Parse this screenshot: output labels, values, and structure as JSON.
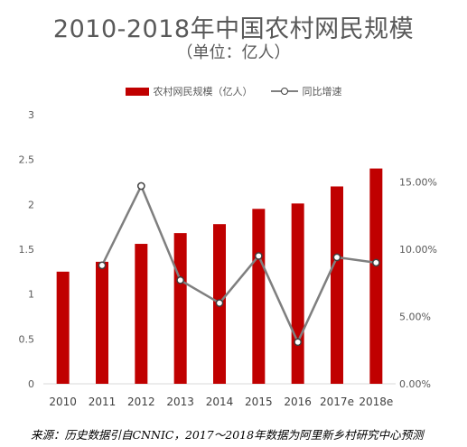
{
  "chart_data": {
    "type": "bar",
    "title": "2010-2018年中国农村网民规模",
    "subtitle": "（单位：亿人）",
    "categories": [
      "2010",
      "2011",
      "2012",
      "2013",
      "2014",
      "2015",
      "2016",
      "2017e",
      "2018e"
    ],
    "series": [
      {
        "name": "农村网民规模（亿人）",
        "type": "bar",
        "axis": "left",
        "color": "#C00000",
        "values": [
          1.25,
          1.36,
          1.56,
          1.68,
          1.78,
          1.95,
          2.01,
          2.2,
          2.4
        ]
      },
      {
        "name": "同比增速",
        "type": "line",
        "axis": "right",
        "color": "#7f7f7f",
        "values": [
          null,
          8.8,
          14.7,
          7.7,
          6.0,
          9.5,
          3.1,
          9.4,
          9.0
        ]
      }
    ],
    "y_left": {
      "min": 0,
      "max": 3,
      "ticks": [
        "0",
        "0.5",
        "1",
        "1.5",
        "2",
        "2.5",
        "3"
      ]
    },
    "y_right": {
      "min": 0,
      "max": 20,
      "ticks": [
        "0.00%",
        "5.00%",
        "10.00%",
        "15.00%"
      ]
    },
    "legend_position": "top",
    "grid": false
  },
  "source": "来源：历史数据引自CNNIC，2017～2018年数据为阿里新乡村研究中心预测"
}
